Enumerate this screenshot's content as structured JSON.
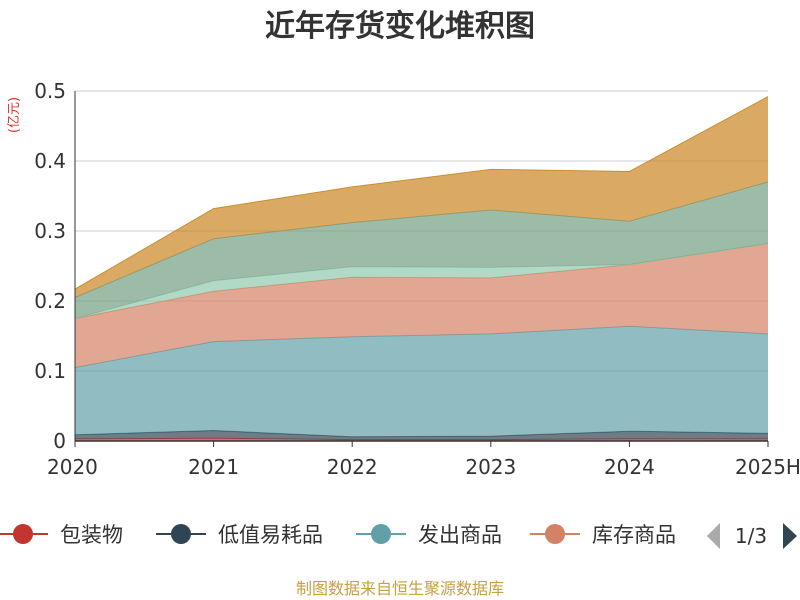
{
  "chart_data": {
    "type": "area",
    "title": "近年存货变化堆积图",
    "ylabel": "(亿元)",
    "xlabel": "",
    "x": [
      "2020",
      "2021",
      "2022",
      "2023",
      "2024",
      "2025H"
    ],
    "ylim": [
      0,
      0.5
    ],
    "yticks": [
      "0",
      "0.1",
      "0.2",
      "0.3",
      "0.4",
      "0.5"
    ],
    "grid": true,
    "stacked": true,
    "series": [
      {
        "name": "包装物",
        "color": "#c23531",
        "values": [
          0.003,
          0.004,
          0.002,
          0.002,
          0.003,
          0.003
        ]
      },
      {
        "name": "低值易耗品",
        "color": "#2f4554",
        "values": [
          0.006,
          0.011,
          0.004,
          0.005,
          0.011,
          0.008
        ]
      },
      {
        "name": "发出商品",
        "color": "#61a0a8",
        "values": [
          0.096,
          0.127,
          0.143,
          0.146,
          0.15,
          0.142
        ]
      },
      {
        "name": "库存商品",
        "color": "#d48265",
        "values": [
          0.07,
          0.072,
          0.085,
          0.08,
          0.088,
          0.129
        ]
      },
      {
        "name": "",
        "color": "#91c7ae",
        "values": [
          0.0,
          0.015,
          0.015,
          0.015,
          0.0,
          0.0
        ]
      },
      {
        "name": "",
        "color": "#749f83",
        "values": [
          0.03,
          0.06,
          0.063,
          0.082,
          0.062,
          0.088
        ]
      },
      {
        "name": "",
        "color": "#ca8622",
        "values": [
          0.012,
          0.043,
          0.051,
          0.058,
          0.071,
          0.122
        ]
      }
    ]
  },
  "legend": {
    "items": [
      {
        "label": "包装物",
        "color": "#c23531"
      },
      {
        "label": "低值易耗品",
        "color": "#2f4554"
      },
      {
        "label": "发出商品",
        "color": "#61a0a8"
      },
      {
        "label": "库存商品",
        "color": "#d48265"
      }
    ],
    "page": "1/3"
  },
  "source": "制图数据来自恒生聚源数据库"
}
